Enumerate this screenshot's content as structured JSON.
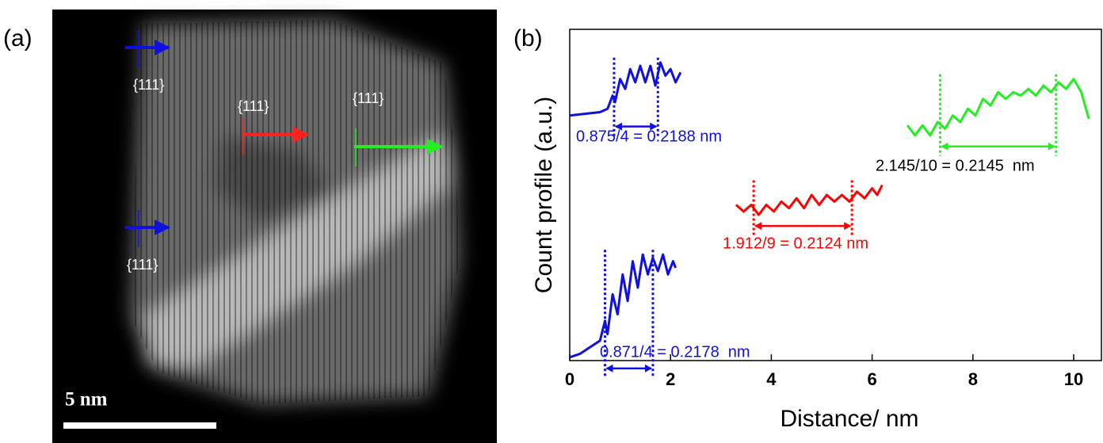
{
  "panels": [
    "(a)",
    "(b)"
  ],
  "image": {
    "labels": [
      "{111}",
      "{111}",
      "{111}",
      "{111}"
    ],
    "scale_bar": "5 nm"
  },
  "chart_data": {
    "type": "line",
    "xlabel": "Distance/ nm",
    "ylabel": "Count profile (a.u.)",
    "xlim": [
      0,
      10.55
    ],
    "xticks": [
      0,
      2,
      4,
      6,
      8,
      10
    ],
    "ylim": [
      0,
      100
    ],
    "series": [
      {
        "color": "#1010e0",
        "annotation": "0.875/4 = 0.2188 nm",
        "annotation_color": "#1010e0",
        "markers": [
          0.88,
          1.75
        ],
        "x": [
          0,
          0.3,
          0.6,
          0.75,
          0.85,
          0.9,
          1.0,
          1.1,
          1.2,
          1.3,
          1.4,
          1.5,
          1.6,
          1.7,
          1.8,
          1.9,
          2.0,
          2.1,
          2.2
        ],
        "values": [
          74,
          74.5,
          75,
          76,
          80,
          78,
          85,
          82,
          88,
          84,
          89,
          84,
          89,
          83,
          90,
          86,
          88,
          84,
          87
        ]
      },
      {
        "color": "#1010e0",
        "annotation": "0.871/4 = 0.2178  nm",
        "annotation_color": "#1010e0",
        "markers": [
          0.7,
          1.65
        ],
        "x": [
          0,
          0.2,
          0.4,
          0.6,
          0.7,
          0.75,
          0.85,
          0.95,
          1.05,
          1.15,
          1.25,
          1.35,
          1.45,
          1.55,
          1.65,
          1.75,
          1.85,
          1.95,
          2.05,
          2.1
        ],
        "values": [
          1,
          2,
          4,
          6,
          12,
          8,
          20,
          14,
          26,
          18,
          30,
          22,
          32,
          26,
          31,
          27,
          32,
          26,
          30,
          28
        ]
      },
      {
        "color": "#ff0000",
        "annotation": "1.912/9 = 0.2124 nm",
        "annotation_color": "#ff0000",
        "markers": [
          3.65,
          5.6
        ],
        "x": [
          3.3,
          3.45,
          3.6,
          3.75,
          3.9,
          4.05,
          4.2,
          4.35,
          4.5,
          4.65,
          4.8,
          4.95,
          5.1,
          5.25,
          5.4,
          5.55,
          5.7,
          5.85,
          6.0,
          6.1,
          6.2
        ],
        "values": [
          47,
          45,
          47,
          44,
          47,
          45,
          48,
          46,
          49,
          46,
          50,
          47,
          50,
          48,
          50,
          48,
          51,
          49,
          52,
          50,
          53
        ]
      },
      {
        "color": "#22ee22",
        "annotation": "2.145/10 = 0.2145  nm",
        "annotation_color": "#000000",
        "markers": [
          7.35,
          9.65
        ],
        "x": [
          6.7,
          6.85,
          7.0,
          7.15,
          7.3,
          7.45,
          7.6,
          7.75,
          7.9,
          8.05,
          8.2,
          8.35,
          8.5,
          8.65,
          8.8,
          8.95,
          9.1,
          9.25,
          9.4,
          9.55,
          9.7,
          9.85,
          10.0,
          10.15,
          10.3
        ],
        "values": [
          71,
          68,
          71,
          68,
          72,
          70,
          74,
          72,
          76,
          74,
          79,
          77,
          81,
          79,
          81,
          80,
          82,
          80,
          83,
          81,
          84,
          82,
          85,
          81,
          73
        ]
      }
    ]
  }
}
